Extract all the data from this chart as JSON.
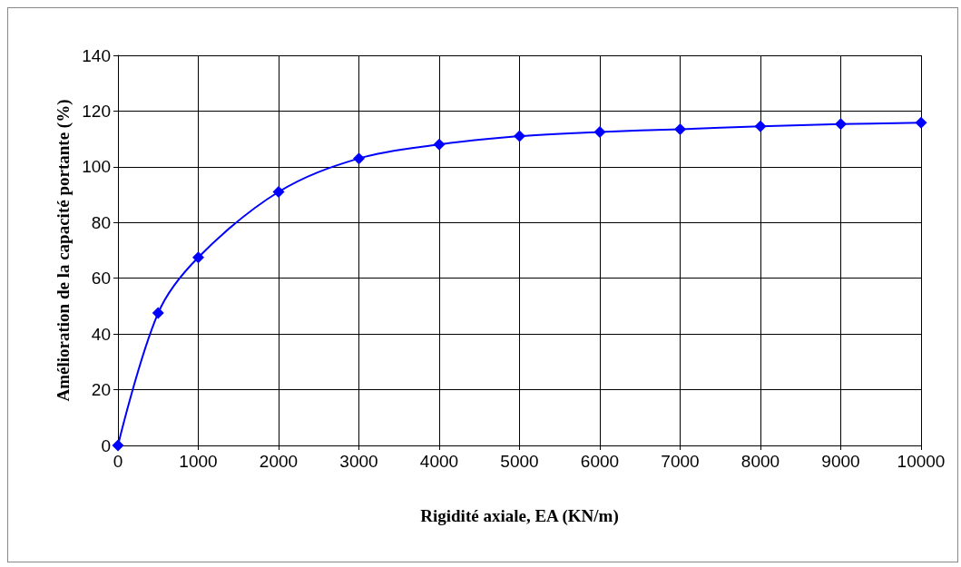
{
  "chart_data": {
    "type": "line",
    "xlabel": "Rigidité axiale, EA (KN/m)",
    "ylabel": "Amélioration de la capacité portante (%)",
    "x": [
      0,
      500,
      1000,
      2000,
      3000,
      4000,
      5000,
      6000,
      7000,
      8000,
      9000,
      10000
    ],
    "series": [
      {
        "color": "#0000ff",
        "values": [
          0,
          47.5,
          67.5,
          91,
          103,
          108,
          111,
          112.5,
          113.5,
          114.5,
          115.3,
          115.8
        ]
      }
    ],
    "xlim": [
      0,
      10000
    ],
    "xticks": [
      0,
      1000,
      2000,
      3000,
      4000,
      5000,
      6000,
      7000,
      8000,
      9000,
      10000
    ],
    "ylim": [
      0,
      140
    ],
    "yticks": [
      0,
      20,
      40,
      60,
      80,
      100,
      120,
      140
    ],
    "grid": true,
    "marker": "diamond",
    "line_style": "solid"
  }
}
